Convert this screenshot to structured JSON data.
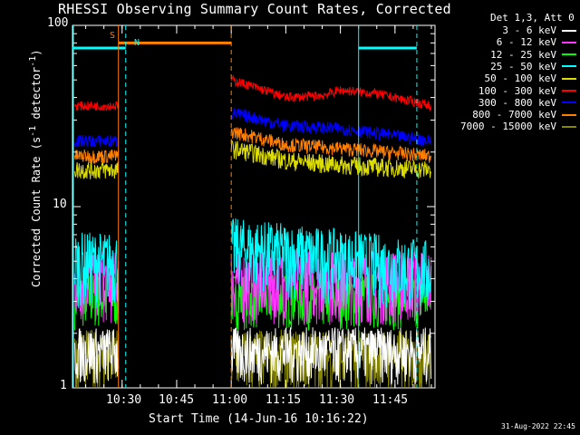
{
  "title": "RHESSI Observing Summary Count Rates, Corrected",
  "legend": {
    "header": "Det 1,3, Att 0",
    "entries": [
      {
        "label": "3 - 6 keV",
        "color": "#ffffff"
      },
      {
        "label": "6 - 12 keV",
        "color": "#ff33ff"
      },
      {
        "label": "12 - 25 keV",
        "color": "#00ff00"
      },
      {
        "label": "25 - 50 keV",
        "color": "#00ffff"
      },
      {
        "label": "50 - 100 keV",
        "color": "#dddd00"
      },
      {
        "label": "100 - 300 keV",
        "color": "#ff0000"
      },
      {
        "label": "300 - 800 keV",
        "color": "#0000ff"
      },
      {
        "label": "800 - 7000 keV",
        "color": "#ff7f00"
      },
      {
        "label": "7000 - 15000 keV",
        "color": "#888800"
      }
    ]
  },
  "stamp": "31-Aug-2022 22:45",
  "chart_data": {
    "type": "line",
    "title": "RHESSI Observing Summary Count Rates, Corrected",
    "xlabel": "Start Time (14-Jun-16 10:16:22)",
    "ylabel": "Corrected Count Rate (s^-1 detector^-1)",
    "y_scale": "log",
    "ylim": [
      1,
      100
    ],
    "xlim": [
      "10:16:22",
      "11:56:00"
    ],
    "x_ticks": [
      "10:30",
      "10:45",
      "11:00",
      "11:15",
      "11:30",
      "11:45"
    ],
    "y_ticks": [
      "1",
      "10",
      "100"
    ],
    "data_gap": [
      "10:29",
      "11:00"
    ],
    "series": [
      {
        "name": "3 - 6 keV",
        "x": [
          "10:17",
          "10:29",
          "11:00",
          "11:55"
        ],
        "y": [
          1.6,
          1.6,
          1.6,
          1.6
        ]
      },
      {
        "name": "6 - 12 keV",
        "x": [
          "10:17",
          "10:29",
          "11:00",
          "11:55"
        ],
        "y": [
          4.0,
          4.0,
          4.0,
          4.0
        ]
      },
      {
        "name": "12 - 25 keV",
        "x": [
          "10:17",
          "10:29",
          "11:00",
          "11:55"
        ],
        "y": [
          3.2,
          3.2,
          3.2,
          3.2
        ]
      },
      {
        "name": "25 - 50 keV",
        "x": [
          "10:17",
          "10:29",
          "11:00",
          "11:55"
        ],
        "y": [
          5.0,
          5.0,
          6.0,
          4.5
        ]
      },
      {
        "name": "50 - 100 keV",
        "x": [
          "10:17",
          "10:29",
          "11:00",
          "11:15",
          "11:30",
          "11:55"
        ],
        "y": [
          16,
          16,
          21,
          18,
          17,
          16
        ]
      },
      {
        "name": "100 - 300 keV",
        "x": [
          "10:17",
          "10:29",
          "11:00",
          "11:15",
          "11:25",
          "11:30",
          "11:40",
          "11:55"
        ],
        "y": [
          36,
          36,
          50,
          40,
          41,
          44,
          42,
          36
        ]
      },
      {
        "name": "300 - 800 keV",
        "x": [
          "10:17",
          "10:29",
          "11:00",
          "11:15",
          "11:30",
          "11:55"
        ],
        "y": [
          23,
          23,
          33,
          28,
          27,
          23
        ]
      },
      {
        "name": "800 - 7000 keV",
        "x": [
          "10:17",
          "10:29",
          "11:00",
          "11:15",
          "11:30",
          "11:55"
        ],
        "y": [
          19,
          19,
          26,
          22,
          21,
          19
        ]
      },
      {
        "name": "7000 - 15000 keV",
        "x": [
          "10:17",
          "10:29",
          "11:00",
          "11:55"
        ],
        "y": [
          1.5,
          1.5,
          1.5,
          1.5
        ]
      }
    ],
    "annotations": [
      {
        "label": "S",
        "color": "#ff7f00",
        "start": "10:29",
        "end": "11:00",
        "level": 80
      },
      {
        "label": "N",
        "color": "#00ffff",
        "start": "10:16:22",
        "end": "10:31",
        "level": 75
      },
      {
        "label": "",
        "color": "#00ffff",
        "start": "11:35",
        "end": "11:51",
        "level": 75
      }
    ]
  }
}
